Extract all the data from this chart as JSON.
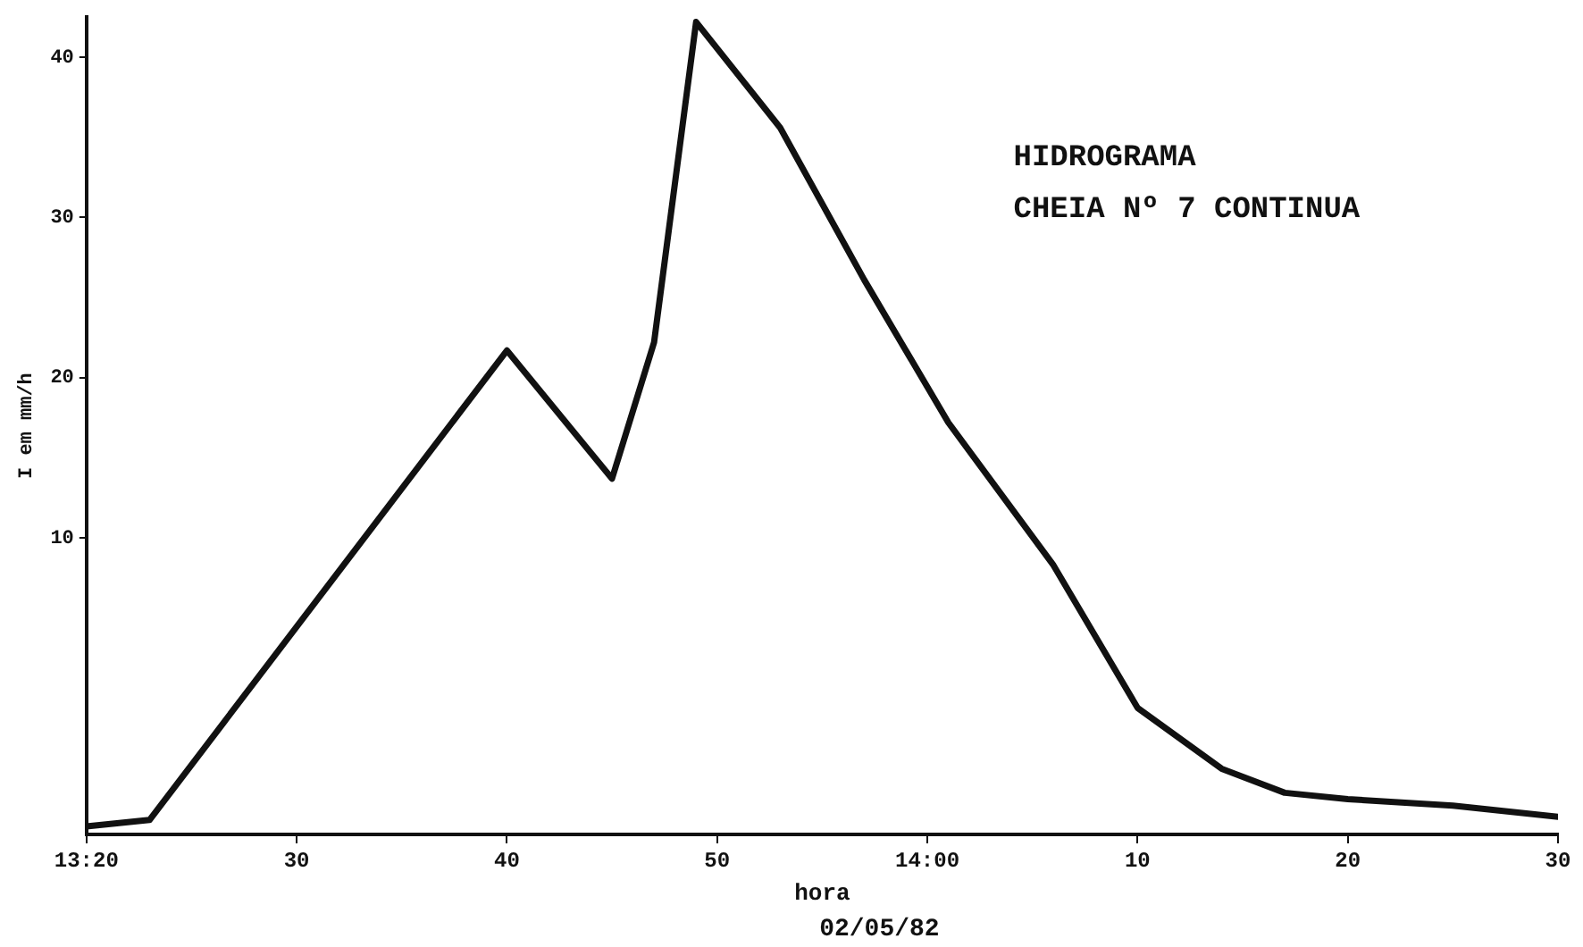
{
  "chart_data": {
    "type": "line",
    "title": "HIDROGRAMA",
    "subtitle": "CHEIA Nº 7 CONTINUA",
    "xlabel": "hora",
    "ylabel": "I em mm/h",
    "annotations": [
      "02/05/82"
    ],
    "x": [
      "--05-02T13:20",
      "--05-02T13:23",
      "--05-02T13:40",
      "--05-02T13:45",
      "--05-02T13:47",
      "--05-02T13:49",
      "--05-02T13:53",
      "--05-02T13:57",
      "--05-02T14:01",
      "--05-02T14:06",
      "--05-02T14:10",
      "--05-02T14:14",
      "--05-02T14:17",
      "--05-02T14:20",
      "--05-02T14:25",
      "--05-02T14:30"
    ],
    "series": [
      {
        "color": "#111111",
        "values": [
          -8.0,
          -7.6,
          21.7,
          13.7,
          22.2,
          42.2,
          35.6,
          26.1,
          17.2,
          8.3,
          -0.6,
          -4.4,
          -5.9,
          -6.3,
          -6.7,
          -7.4
        ]
      }
    ],
    "xlim": [
      "--05-02T13:20",
      "--05-02T14:30"
    ],
    "xticks": [
      {
        "value": "--05-02T13:20",
        "label": "13:20"
      },
      {
        "value": "--05-02T13:30",
        "label": "30"
      },
      {
        "value": "--05-02T13:40",
        "label": "40"
      },
      {
        "value": "--05-02T13:50",
        "label": "50"
      },
      {
        "value": "--05-02T14:00",
        "label": "14:00"
      },
      {
        "value": "--05-02T14:10",
        "label": "10"
      },
      {
        "value": "--05-02T14:20",
        "label": "20"
      },
      {
        "value": "--05-02T14:30",
        "label": "30"
      }
    ],
    "ylim": [
      -8.5,
      42.5
    ],
    "yticks": [
      10,
      20,
      30,
      40
    ],
    "marker": "none",
    "line_style": "solid",
    "legend": false
  }
}
